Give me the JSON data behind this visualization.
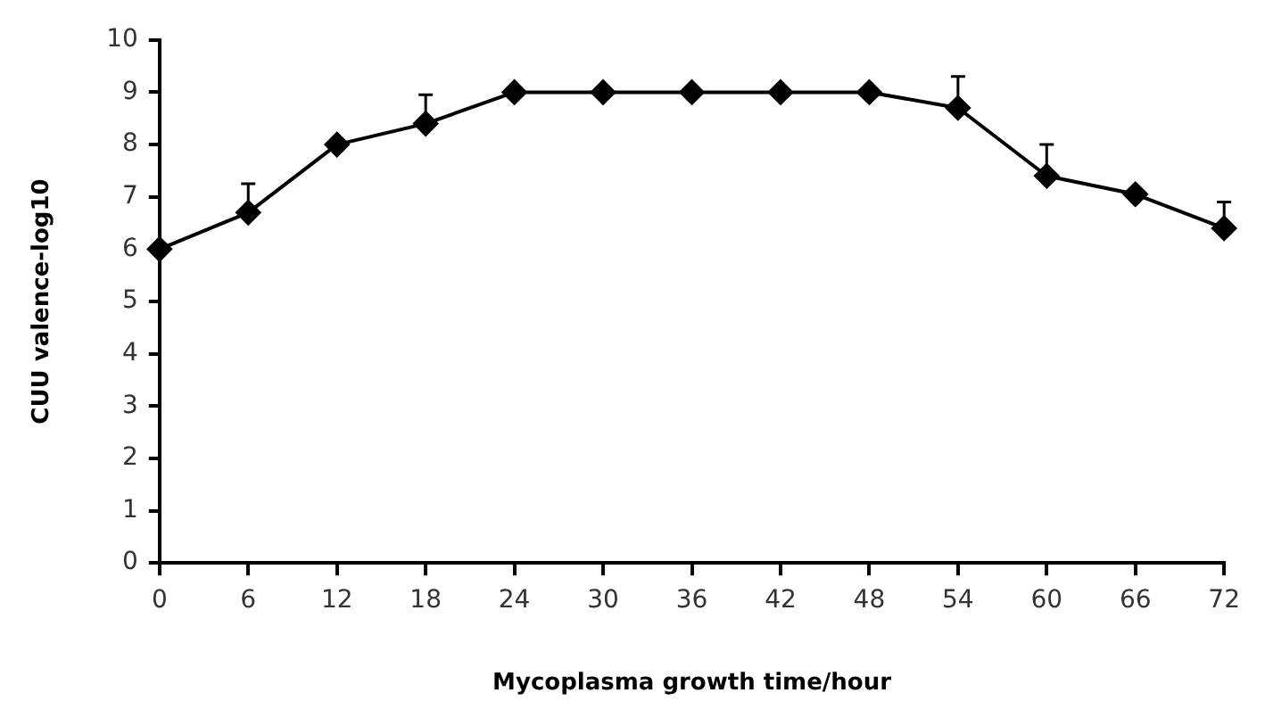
{
  "chart_data": {
    "type": "line",
    "xlabel": "Mycoplasma growth time/hour",
    "ylabel": "CUU valence-log10",
    "x": [
      0,
      6,
      12,
      18,
      24,
      30,
      36,
      42,
      48,
      54,
      60,
      66,
      72
    ],
    "series": [
      {
        "color": "#000000",
        "values": [
          6.0,
          6.7,
          8.0,
          8.4,
          9.0,
          9.0,
          9.0,
          9.0,
          9.0,
          8.7,
          7.4,
          7.05,
          6.4
        ],
        "errors": [
          null,
          [
            6.7,
            7.25
          ],
          null,
          [
            8.4,
            8.95
          ],
          null,
          null,
          null,
          null,
          null,
          [
            8.7,
            9.3
          ],
          [
            7.4,
            8.0
          ],
          null,
          [
            6.4,
            6.9
          ]
        ]
      }
    ],
    "xlim": [
      0,
      72
    ],
    "xticks": [
      0,
      6,
      12,
      18,
      24,
      30,
      36,
      42,
      48,
      54,
      60,
      66,
      72
    ],
    "ylim": [
      0,
      10
    ],
    "yticks": [
      0,
      1,
      2,
      3,
      4,
      5,
      6,
      7,
      8,
      9,
      10
    ],
    "grid": false,
    "legend": false,
    "marker": "diamond",
    "line_style": "solid"
  }
}
